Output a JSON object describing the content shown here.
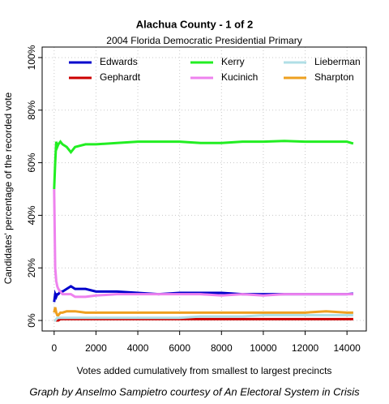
{
  "chart_data": {
    "type": "line",
    "title": "Alachua County - 1 of 2",
    "subtitle": "2004 Florida Democratic Presidential Primary",
    "x_label": "Votes added cumulatively from smallest to largest precincts",
    "y_label": "Candidates' percentage of the recorded vote",
    "caption": "Graph by Anselmo Sampietro courtesy of An Electoral System in Crisis",
    "x": [
      0,
      50,
      100,
      150,
      200,
      300,
      400,
      600,
      800,
      1000,
      1500,
      2000,
      3000,
      4000,
      5000,
      6000,
      7000,
      8000,
      9000,
      10000,
      11000,
      12000,
      13000,
      14000,
      14300
    ],
    "series": [
      {
        "name": "Edwards",
        "color": "#0000cc",
        "values": [
          7,
          10,
          9,
          10,
          10,
          11,
          11,
          12,
          13,
          12,
          12,
          11,
          11,
          10.5,
          10,
          10.5,
          10.5,
          10.5,
          10,
          10,
          10,
          10,
          10,
          10,
          10.2
        ]
      },
      {
        "name": "Gephardt",
        "color": "#cc0000",
        "values": [
          0,
          0,
          0,
          0,
          0,
          0.5,
          0.5,
          0.5,
          0.5,
          0.5,
          0.5,
          0.5,
          0.5,
          0.5,
          0.5,
          0.5,
          0.5,
          0.5,
          0.5,
          0.5,
          0.5,
          0.5,
          0.5,
          0.5,
          0.5
        ]
      },
      {
        "name": "Kerry",
        "color": "#22ee22",
        "values": [
          50,
          60,
          68,
          66,
          67,
          68,
          67,
          66,
          64,
          66,
          67,
          67,
          67.5,
          68,
          68,
          68,
          67.5,
          67.5,
          68,
          68,
          68.3,
          68,
          68,
          68,
          67.3
        ]
      },
      {
        "name": "Kucinich",
        "color": "#ee82ee",
        "values": [
          50,
          20,
          15,
          13,
          12,
          11,
          10,
          10,
          10,
          9,
          9,
          9.5,
          10,
          10,
          10,
          10,
          10,
          9.5,
          10,
          9.5,
          10,
          10,
          10,
          10,
          10
        ]
      },
      {
        "name": "Lieberman",
        "color": "#b0dfe6",
        "values": [
          0,
          0,
          0.5,
          1,
          1,
          1,
          1,
          1,
          1,
          1,
          1,
          1,
          1,
          1,
          1,
          1,
          1.5,
          1.5,
          1.5,
          2,
          2,
          2,
          2,
          2,
          2
        ]
      },
      {
        "name": "Sharpton",
        "color": "#eea020",
        "values": [
          3,
          5,
          3,
          2,
          2,
          3,
          3,
          3.5,
          3.5,
          3.5,
          3,
          3,
          3,
          3,
          3,
          3,
          3,
          3,
          3,
          3,
          3,
          3,
          3.5,
          3,
          3
        ]
      }
    ],
    "xlim": [
      -574,
      14924
    ],
    "ylim": [
      -4,
      104
    ],
    "xticks": [
      0,
      2000,
      4000,
      6000,
      8000,
      10000,
      12000,
      14000
    ],
    "yticks": [
      {
        "value": 0,
        "label": "0%"
      },
      {
        "value": 20,
        "label": "20%"
      },
      {
        "value": 40,
        "label": "40%"
      },
      {
        "value": 60,
        "label": "60%"
      },
      {
        "value": 80,
        "label": "80%"
      },
      {
        "value": 100,
        "label": "100%"
      }
    ],
    "grid": true
  }
}
